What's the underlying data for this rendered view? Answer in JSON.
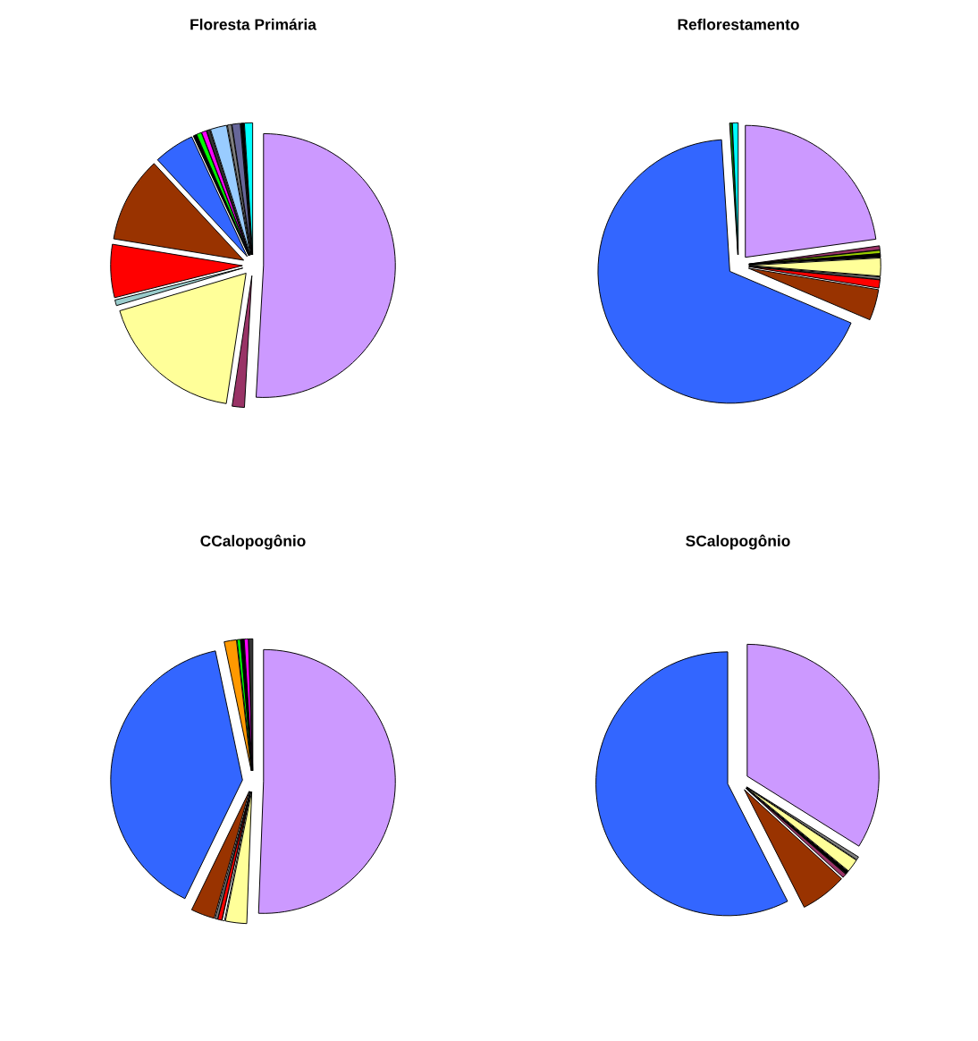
{
  "chart_data": [
    {
      "type": "pie",
      "title": "Floresta Primária",
      "categories": [
        null,
        null,
        null,
        null,
        null,
        null,
        null,
        null,
        null,
        null,
        null,
        null,
        null,
        null,
        null,
        null
      ],
      "values": [
        50.9,
        1.5,
        18,
        0.7,
        6.5,
        10.5,
        5,
        0.4,
        0.6,
        0.6,
        0.4,
        2.0,
        0.5,
        1.0,
        0.4,
        1.0
      ],
      "colors": [
        "#cc99ff",
        "#993366",
        "#ffff99",
        "#99cccc",
        "#ff0000",
        "#993300",
        "#3366ff",
        "#000000",
        "#00ff00",
        "#ff00ff",
        "#333333",
        "#99ccff",
        "#808080",
        "#666699",
        "#000000",
        "#00ffff"
      ]
    },
    {
      "type": "pie",
      "title": "Reflorestamento",
      "categories": [
        null,
        null,
        null,
        null,
        null,
        null,
        null,
        null,
        null,
        null,
        null
      ],
      "values": [
        22.8,
        0.5,
        0.4,
        0.4,
        2.2,
        0.3,
        1.0,
        3.8,
        67.6,
        0.3,
        0.7
      ],
      "colors": [
        "#cc99ff",
        "#993366",
        "#99cc00",
        "#000000",
        "#ffff99",
        "#808080",
        "#ff0000",
        "#993300",
        "#3366ff",
        "#008000",
        "#00ffff"
      ]
    },
    {
      "type": "pie",
      "title": "CCalopogônio",
      "categories": [
        null,
        null,
        null,
        null,
        null,
        null,
        null,
        null,
        null,
        null,
        null,
        null
      ],
      "values": [
        50.6,
        2.6,
        0.3,
        0.5,
        0.3,
        2.9,
        39.5,
        1.5,
        0.4,
        0.4,
        0.5,
        0.5
      ],
      "colors": [
        "#cc99ff",
        "#ffff99",
        "#ffffff",
        "#ff0000",
        "#808080",
        "#993300",
        "#3366ff",
        "#ff9900",
        "#00ff00",
        "#000000",
        "#ff00ff",
        "#333333"
      ]
    },
    {
      "type": "pie",
      "title": "SCalopogônio",
      "categories": [
        null,
        null,
        null,
        null,
        null,
        null,
        null
      ],
      "values": [
        33.9,
        0.4,
        1.6,
        0.4,
        0.5,
        5.7,
        57.5
      ],
      "colors": [
        "#cc99ff",
        "#808080",
        "#ffff99",
        "#000000",
        "#993366",
        "#993300",
        "#3366ff"
      ]
    }
  ]
}
